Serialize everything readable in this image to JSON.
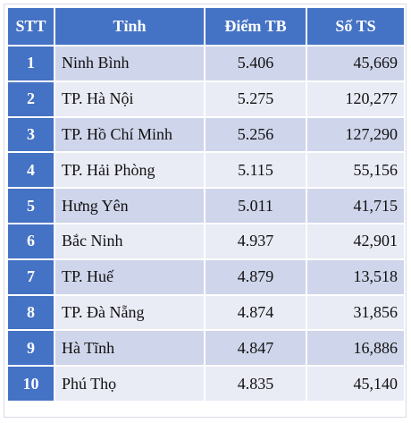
{
  "table": {
    "headers": {
      "stt": "STT",
      "province": "Tỉnh",
      "score": "Điểm TB",
      "count": "Số TS"
    },
    "rows": [
      {
        "stt": "1",
        "province": "Ninh Bình",
        "score": "5.406",
        "count": "45,669"
      },
      {
        "stt": "2",
        "province": "TP. Hà Nội",
        "score": "5.275",
        "count": "120,277"
      },
      {
        "stt": "3",
        "province": "TP. Hồ Chí Minh",
        "score": "5.256",
        "count": "127,290"
      },
      {
        "stt": "4",
        "province": "TP. Hải Phòng",
        "score": "5.115",
        "count": "55,156"
      },
      {
        "stt": "5",
        "province": "Hưng Yên",
        "score": "5.011",
        "count": "41,715"
      },
      {
        "stt": "6",
        "province": "Bắc Ninh",
        "score": "4.937",
        "count": "42,901"
      },
      {
        "stt": "7",
        "province": "TP. Huế",
        "score": "4.879",
        "count": "13,518"
      },
      {
        "stt": "8",
        "province": "TP. Đà Nẵng",
        "score": "4.874",
        "count": "31,856"
      },
      {
        "stt": "9",
        "province": "Hà Tĩnh",
        "score": "4.847",
        "count": "16,886"
      },
      {
        "stt": "10",
        "province": "Phú Thọ",
        "score": "4.835",
        "count": "45,140"
      }
    ]
  },
  "colors": {
    "header_bg": "#4472c4",
    "row_odd_bg": "#cfd5ea",
    "row_even_bg": "#e9ebf5",
    "header_text": "#ffffff"
  }
}
